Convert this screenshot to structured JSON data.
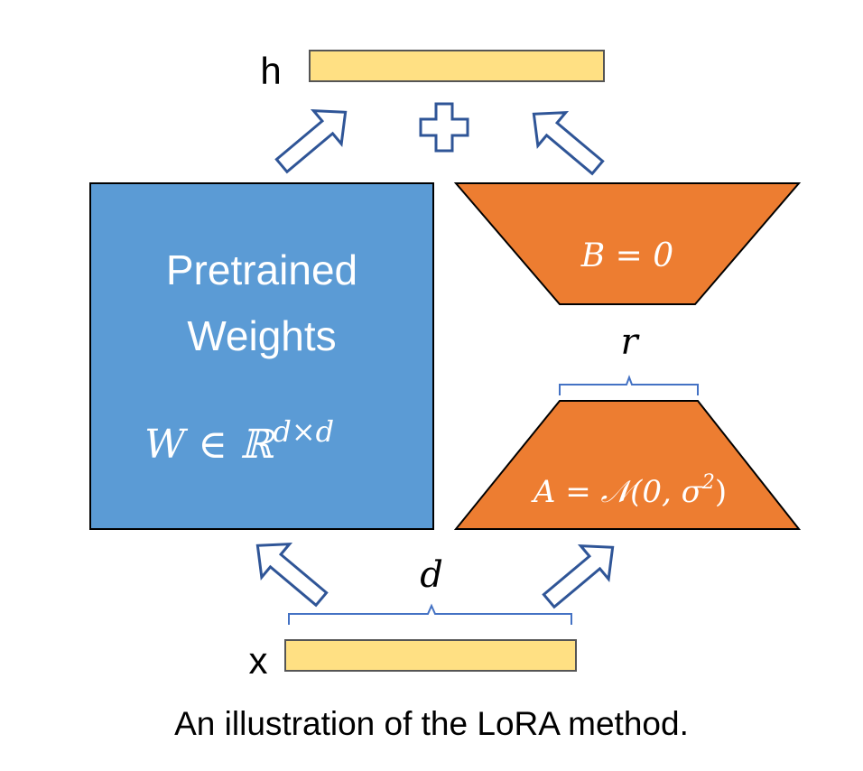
{
  "labels": {
    "h": "h",
    "x": "x",
    "pretrained_line1": "Pretrained",
    "pretrained_line2": "Weights",
    "w_base": "W ∈ ℝ",
    "w_sup": "d×d",
    "b_eq": "B = 0",
    "a_eq_base": "A = 𝒩(0, σ",
    "a_eq_sup": "2",
    "a_eq_close": ")",
    "r": "r",
    "d": "d",
    "caption": "An illustration of the LoRA method."
  },
  "colors": {
    "blue": "#5B9BD5",
    "orange": "#ED7D31",
    "bar": "#FFE083",
    "arrow": "#2F5597",
    "brace": "#4472C4",
    "outline": "#000000"
  },
  "icons": {
    "arrow": "hollow-arrow-icon",
    "plus": "plus-icon",
    "brace": "curly-brace-icon"
  }
}
